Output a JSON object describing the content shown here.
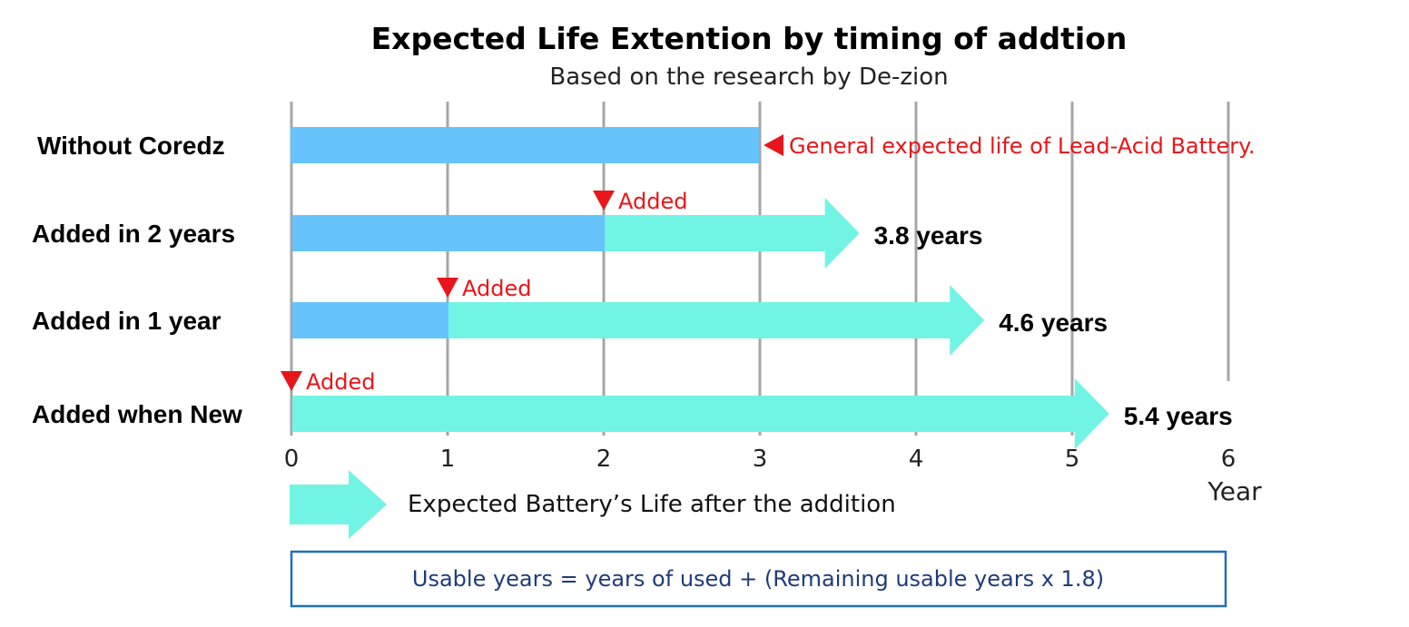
{
  "chart_data": {
    "type": "bar",
    "title": "Expected Life Extention by timing of addtion",
    "subtitle": "Based on the research by De-zion",
    "xlabel": "Year",
    "xlim": [
      0,
      6
    ],
    "ticks": [
      0,
      1,
      2,
      3,
      4,
      5,
      6
    ],
    "colors": {
      "before": "#66c3fc",
      "after": "#72f4e4",
      "accent": "#e8161b",
      "grid": "#a6a6a6",
      "box": "#1f6fb8"
    },
    "rows": [
      {
        "label": "Without Coredz",
        "added_at": null,
        "end": 3,
        "end_label": "",
        "marker_label": "",
        "note": "General expected life of Lead-Acid Battery."
      },
      {
        "label": "Added in 2 years",
        "added_at": 2,
        "end": 3.8,
        "end_label": "3.8 years",
        "marker_label": "Added",
        "note": ""
      },
      {
        "label": "Added in 1 year",
        "added_at": 1,
        "end": 4.6,
        "end_label": "4.6 years",
        "marker_label": "Added",
        "note": ""
      },
      {
        "label": "Added when New",
        "added_at": 0,
        "end": 5.4,
        "end_label": "5.4 years",
        "marker_label": "Added",
        "note": ""
      }
    ],
    "legend": {
      "label": "Expected Battery’s Life after the addition"
    },
    "formula": "Usable years = years of used + (Remaining usable years x 1.8)"
  }
}
